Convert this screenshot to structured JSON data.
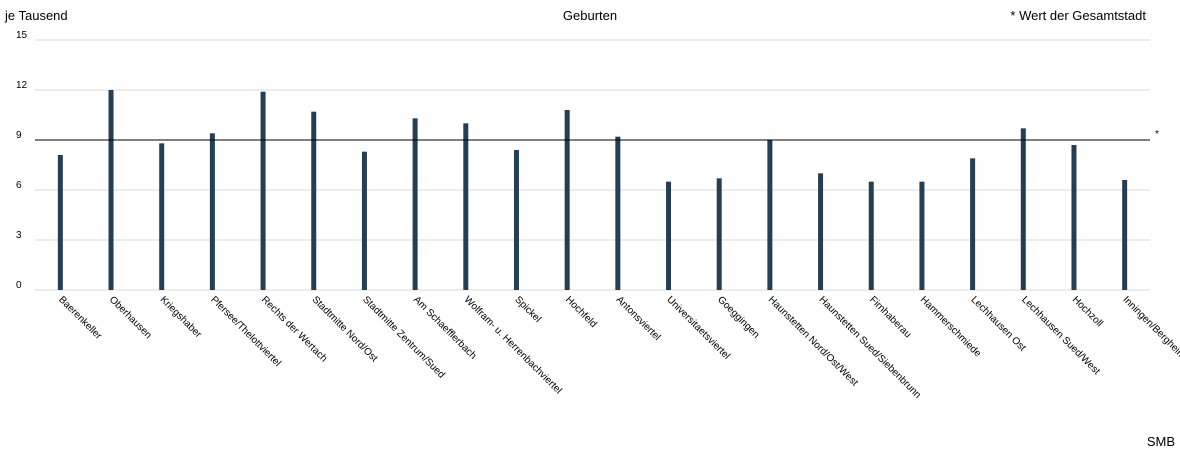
{
  "header": {
    "ylabel": "je Tausend",
    "title": "Geburten",
    "note": "* Wert der Gesamtstadt",
    "source": "SMB"
  },
  "colors": {
    "bar": "#243f55",
    "grid": "#d9d9d9",
    "refline": "#000000"
  },
  "chart_data": {
    "type": "bar",
    "title": "Geburten",
    "ylabel": "je Tausend",
    "xlabel": "",
    "ylim": [
      0,
      15
    ],
    "yticks": [
      0,
      3,
      6,
      9,
      12,
      15
    ],
    "grid": true,
    "reference_line": {
      "value": 9,
      "label": "*"
    },
    "categories": [
      "Baerenkeller",
      "Oberhausen",
      "Kriegshaber",
      "Pfersee/Thelottviertel",
      "Rechts der Wertach",
      "Stadtmitte Nord/Ost",
      "Stadtmitte Zentrum/Sued",
      "Am Schaefflerbach",
      "Wolfram- u. Herrenbachviertel",
      "Spickel",
      "Hochfeld",
      "Antonsviertel",
      "Universitaetsviertel",
      "Goeggingen",
      "Haunstetten Nord/Ost/West",
      "Haunstetten Sued/Siebenbrunn",
      "Firnhaberau",
      "Hammerschmiede",
      "Lechhausen Ost",
      "Lechhausen Sued/West",
      "Hochzoll",
      "Inningen/Bergheim"
    ],
    "values": [
      8.1,
      12.0,
      8.8,
      9.4,
      11.9,
      10.7,
      8.3,
      10.3,
      10.0,
      8.4,
      10.8,
      9.2,
      6.5,
      6.7,
      9.0,
      7.0,
      6.5,
      6.5,
      7.9,
      9.7,
      8.7,
      6.6
    ]
  }
}
